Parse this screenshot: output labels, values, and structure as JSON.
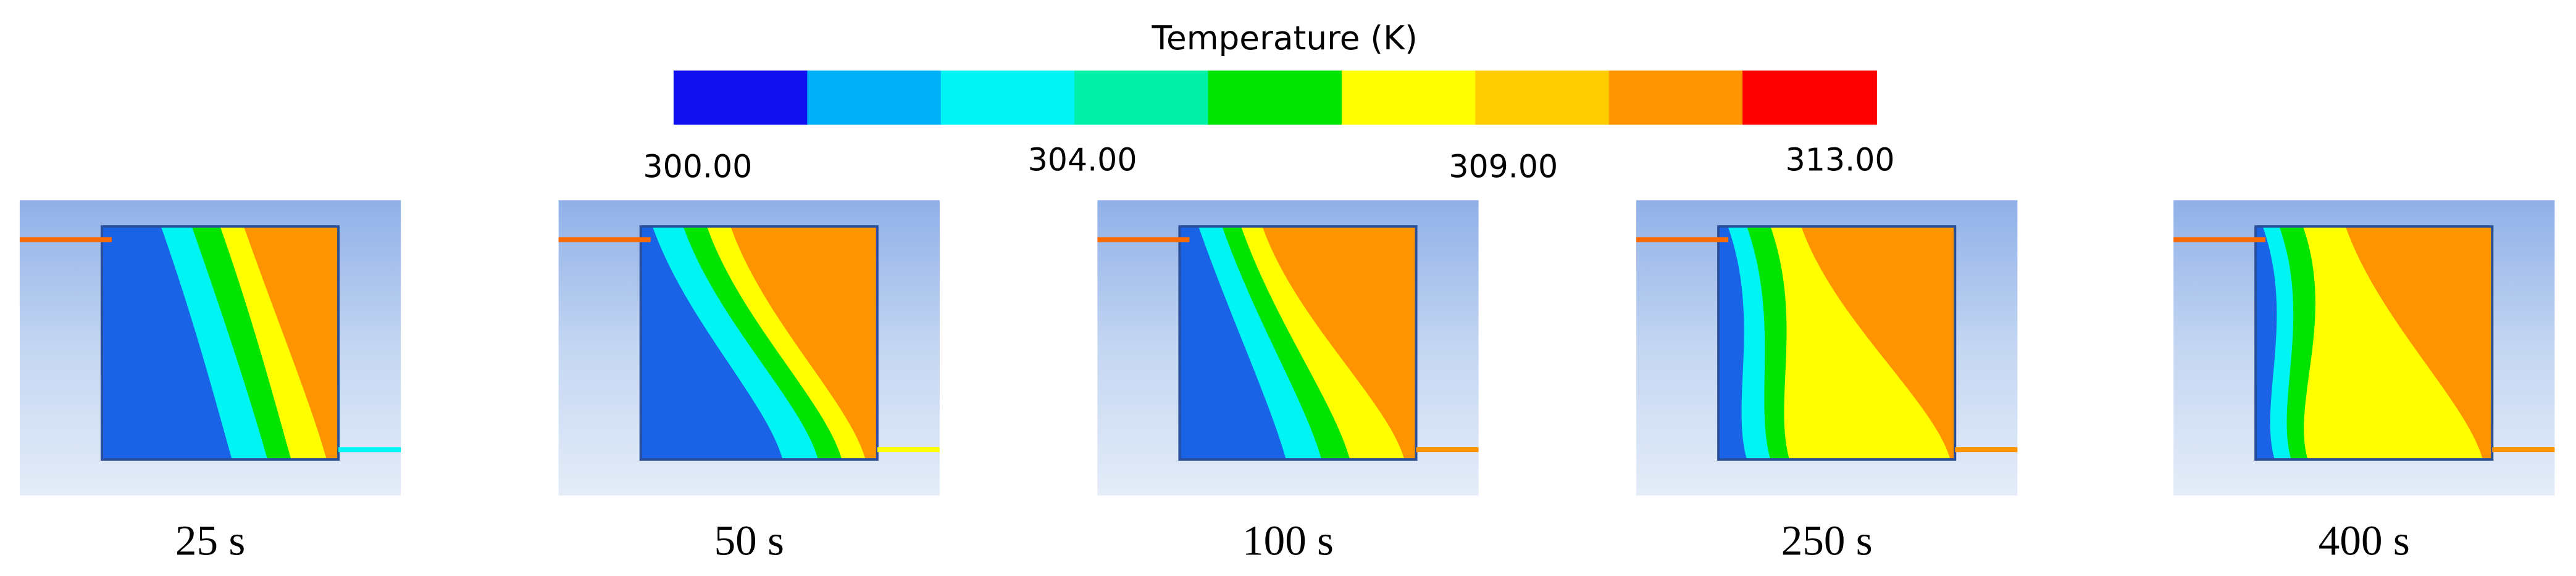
{
  "colorbar": {
    "title": "Temperature (K)",
    "colors": [
      "#1010f0",
      "#00b0f8",
      "#00f4f4",
      "#00f0a8",
      "#00e400",
      "#ffff00",
      "#ffcc00",
      "#ff9400",
      "#ff0000"
    ],
    "labels": [
      "300.00",
      "304.00",
      "309.00",
      "313.00"
    ]
  },
  "panels": [
    {
      "label": "25 s"
    },
    {
      "label": "50 s"
    },
    {
      "label": "100 s"
    },
    {
      "label": "250 s"
    },
    {
      "label": "400 s"
    }
  ]
}
